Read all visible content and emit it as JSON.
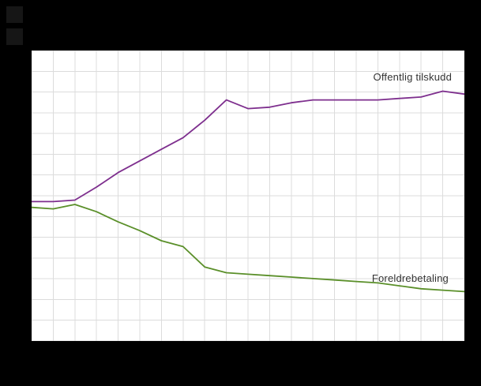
{
  "chart": {
    "background": "#000000",
    "plot_background": "#ffffff",
    "grid_color": "#dcdcdc",
    "label_color": "#333333"
  },
  "chart_data": {
    "type": "line",
    "title": "",
    "xlabel": "",
    "ylabel": "",
    "x": [
      0,
      1,
      2,
      3,
      4,
      5,
      6,
      7,
      8,
      9,
      10,
      11,
      12,
      13,
      14,
      15,
      16,
      17,
      18,
      19,
      20
    ],
    "ylim": [
      0,
      100
    ],
    "grid": true,
    "legend": "inline-annotations",
    "series": [
      {
        "name": "Offentlig tilskudd",
        "color": "#7e2f8e",
        "values": [
          48,
          48,
          48.5,
          53,
          58,
          62,
          66,
          70,
          76,
          83,
          80,
          80.5,
          82,
          83,
          83,
          83,
          83,
          83.5,
          84,
          86,
          85
        ]
      },
      {
        "name": "Foreldrebetaling",
        "color": "#5a8f29",
        "values": [
          46,
          45.5,
          47,
          44.5,
          41,
          38,
          34.5,
          32.5,
          25.5,
          23.5,
          23,
          22.5,
          22,
          21.5,
          21,
          20.5,
          20,
          19,
          18,
          17.5,
          17
        ]
      }
    ]
  }
}
